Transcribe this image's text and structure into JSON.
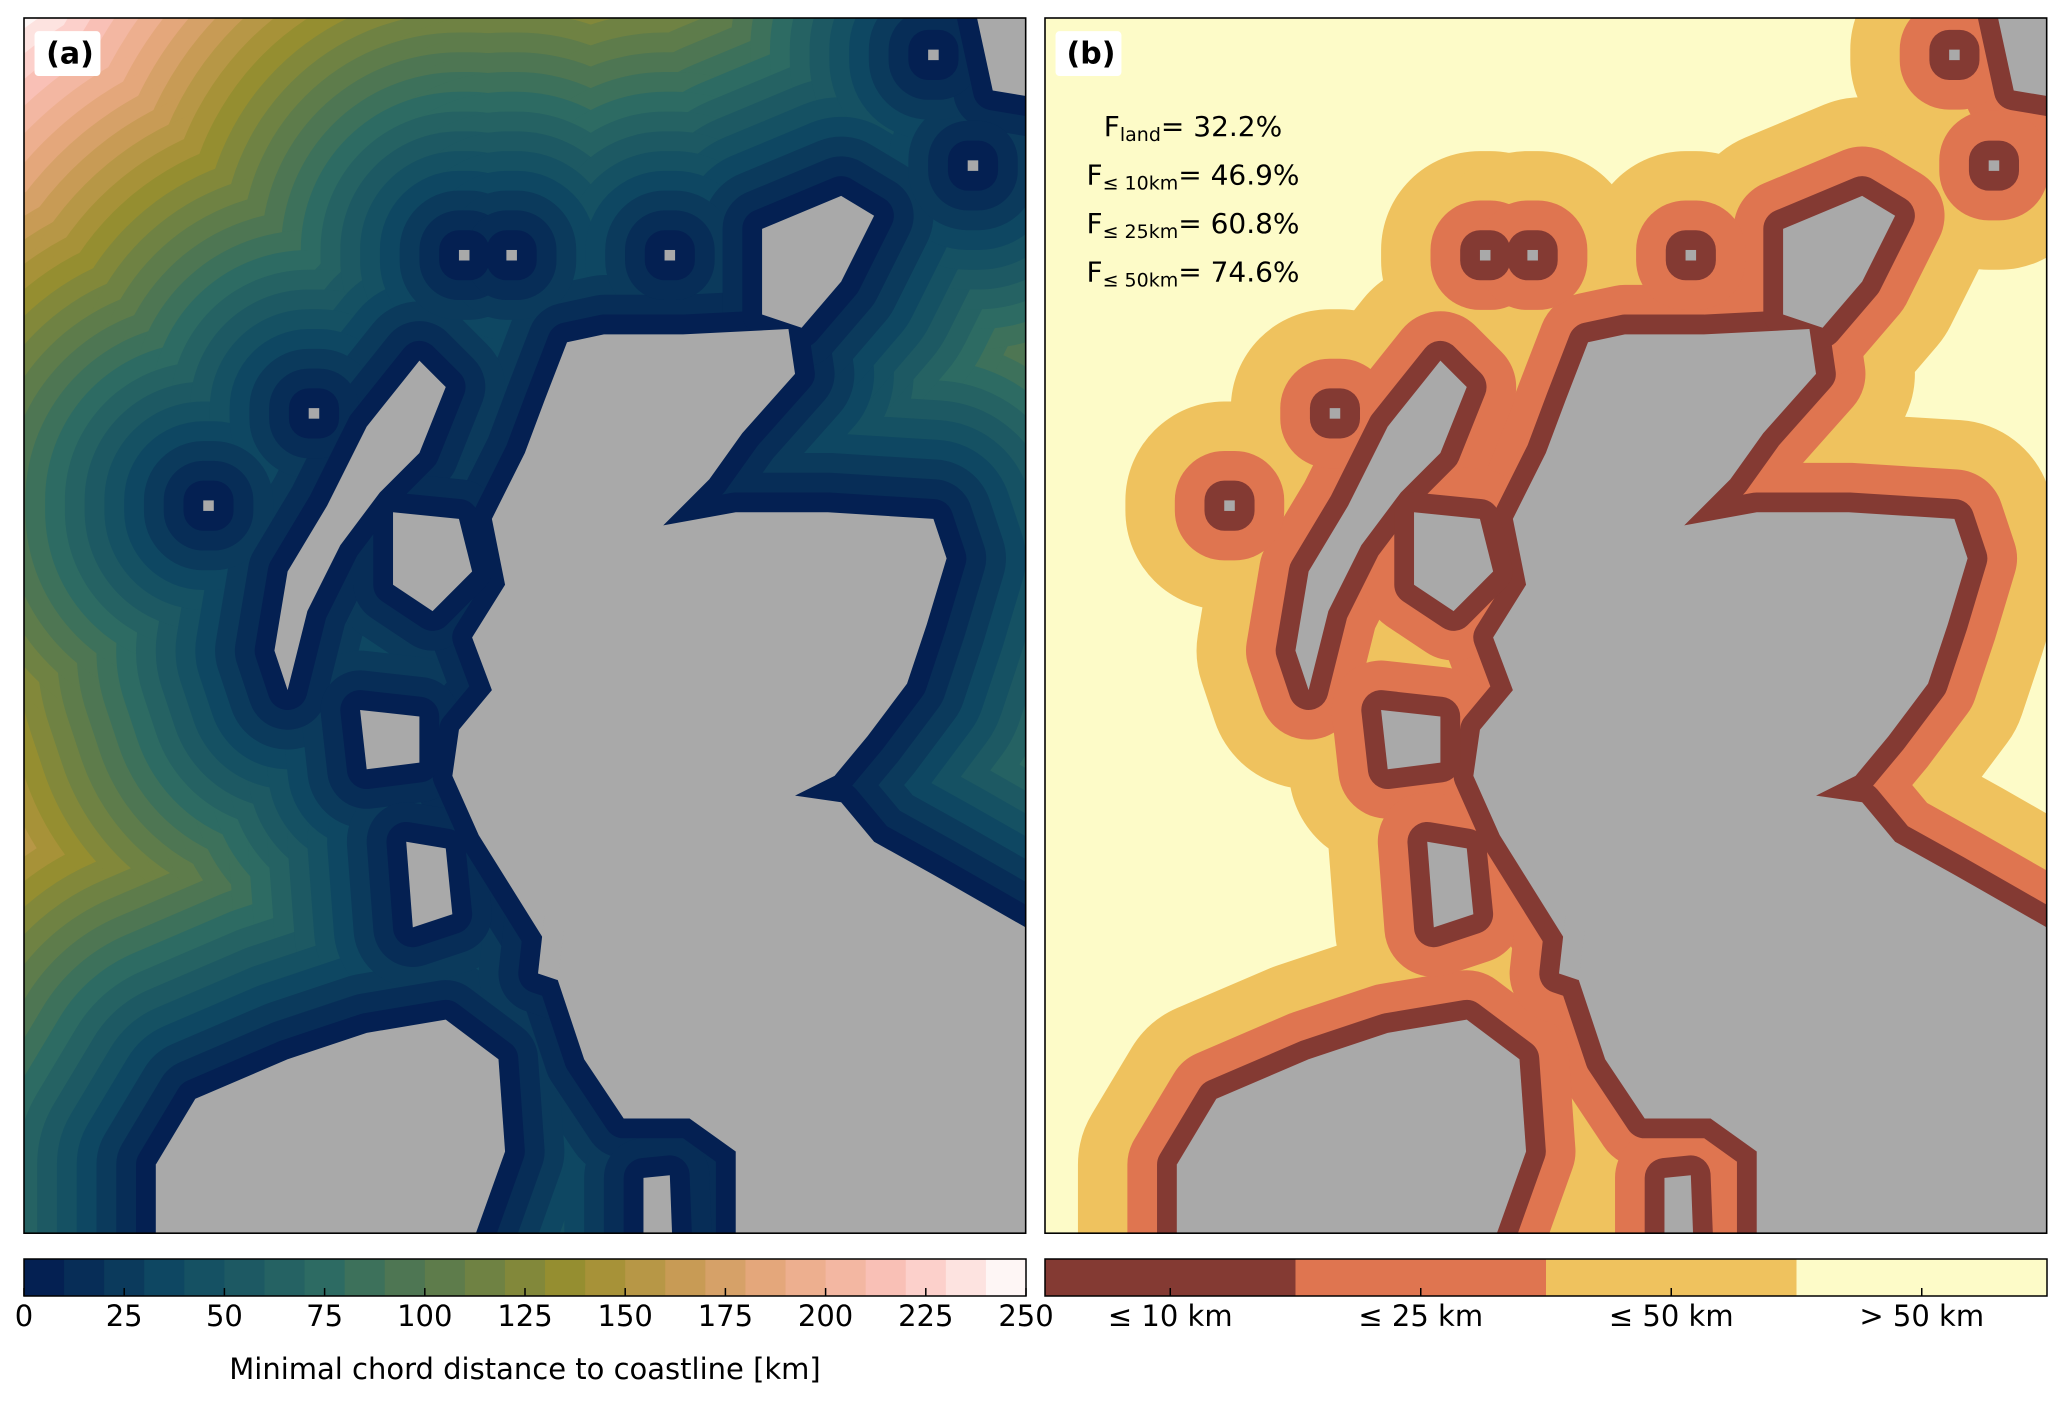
{
  "panels": [
    {
      "label": "(a)"
    },
    {
      "label": "(b)",
      "annotations": [
        {
          "symbol": "F",
          "subscript": "land",
          "text": "= 32.2%"
        },
        {
          "symbol": "F",
          "subscript": "≤ 10km",
          "text": "= 46.9%"
        },
        {
          "symbol": "F",
          "subscript": "≤ 25km",
          "text": "= 60.8%"
        },
        {
          "symbol": "F",
          "subscript": "≤ 50km",
          "text": "= 74.6%"
        }
      ]
    }
  ],
  "colorbar_a": {
    "lim": [
      0,
      250
    ],
    "ticks": [
      0,
      25,
      50,
      75,
      100,
      125,
      150,
      175,
      200,
      225,
      250
    ],
    "label": "Minimal chord distance to coastline [km]"
  },
  "colorbar_b": {
    "categories": [
      "≤  10 km",
      "≤  25 km",
      "≤  50 km",
      "> 50 km"
    ],
    "colors": [
      "#843a33",
      "#df7550",
      "#efc25e",
      "#fdfbc8"
    ]
  }
}
